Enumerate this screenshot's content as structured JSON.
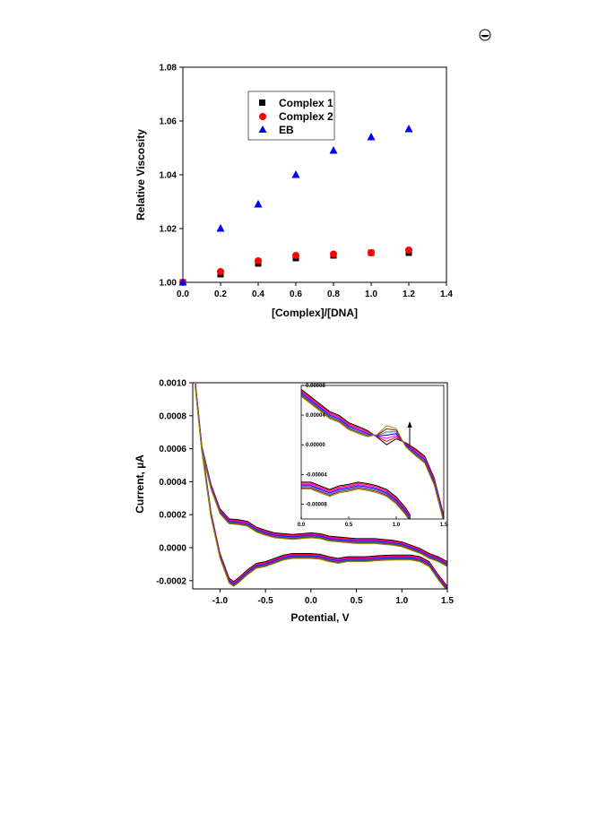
{
  "page": {
    "corner_icon": "copyright-like-circle-icon"
  },
  "chart_data": [
    {
      "type": "scatter",
      "xlabel": "[Complex]/[DNA]",
      "ylabel": "Relative Viscosity",
      "xlim": [
        0.0,
        1.4
      ],
      "ylim": [
        1.0,
        1.08
      ],
      "xticks": [
        "0.0",
        "0.2",
        "0.4",
        "0.6",
        "0.8",
        "1.0",
        "1.2",
        "1.4"
      ],
      "yticks": [
        "1.00",
        "1.02",
        "1.04",
        "1.06",
        "1.08"
      ],
      "legend_position": "top-center",
      "x": [
        0.0,
        0.2,
        0.4,
        0.6,
        0.8,
        1.0,
        1.2
      ],
      "series": [
        {
          "name": "Complex 1",
          "marker": "square",
          "color": "#000000",
          "values": [
            1.0,
            1.003,
            1.007,
            1.009,
            1.01,
            1.011,
            1.011
          ]
        },
        {
          "name": "Complex 2",
          "marker": "circle",
          "color": "#ff0000",
          "values": [
            1.0,
            1.004,
            1.008,
            1.01,
            1.0105,
            1.011,
            1.012
          ]
        },
        {
          "name": "EB",
          "marker": "triangle",
          "color": "#0000ff",
          "values": [
            1.0,
            1.02,
            1.029,
            1.04,
            1.049,
            1.054,
            1.057
          ]
        }
      ]
    },
    {
      "type": "line",
      "xlabel": "Potential, V",
      "ylabel": "Current, µA",
      "xlim": [
        -1.3,
        1.5
      ],
      "ylim": [
        -0.00025,
        0.001
      ],
      "xticks": [
        "-1.0",
        "-0.5",
        "0.0",
        "0.5",
        "1.0",
        "1.5"
      ],
      "xtick_values": [
        -1.0,
        -0.5,
        0.0,
        0.5,
        1.0,
        1.5
      ],
      "yticks": [
        "-0.0002",
        "0.0000",
        "0.0002",
        "0.0004",
        "0.0006",
        "0.0008",
        "0.0010"
      ],
      "ytick_values": [
        -0.0002,
        0.0,
        0.0002,
        0.0004,
        0.0006,
        0.0008,
        0.001
      ],
      "series_colors": [
        "#000000",
        "#ff0000",
        "#ff00ff",
        "#0000ff",
        "#3b6fb8",
        "#8b1a1a",
        "#8b8b00"
      ],
      "forward_x": [
        -1.27,
        -1.2,
        -1.1,
        -1.0,
        -0.9,
        -0.8,
        -0.7,
        -0.6,
        -0.5,
        -0.4,
        -0.3,
        -0.2,
        -0.1,
        0.0,
        0.1,
        0.2,
        0.3,
        0.4,
        0.5,
        0.6,
        0.7,
        0.8,
        0.9,
        1.0,
        1.1,
        1.2,
        1.3,
        1.4,
        1.5
      ],
      "forward_y": [
        0.00098,
        0.0006,
        0.00037,
        0.00022,
        0.00016,
        0.000155,
        0.000145,
        0.00011,
        9e-05,
        7.5e-05,
        7e-05,
        6.5e-05,
        7e-05,
        7.5e-05,
        7e-05,
        5.5e-05,
        5e-05,
        4.5e-05,
        4e-05,
        4e-05,
        4e-05,
        3.5e-05,
        3e-05,
        2e-05,
        0.0,
        -2e-05,
        -5e-05,
        -7e-05,
        -0.0001
      ],
      "reverse_x": [
        1.5,
        1.4,
        1.3,
        1.2,
        1.1,
        1.0,
        0.9,
        0.8,
        0.7,
        0.6,
        0.5,
        0.4,
        0.3,
        0.2,
        0.1,
        0.0,
        -0.1,
        -0.2,
        -0.3,
        -0.4,
        -0.5,
        -0.6,
        -0.7,
        -0.8,
        -0.85,
        -0.9,
        -1.0,
        -1.1,
        -1.2,
        -1.27
      ],
      "reverse_y": [
        -0.00025,
        -0.00018,
        -0.0001,
        -7e-05,
        -6e-05,
        -6e-05,
        -6e-05,
        -6.2e-05,
        -6.5e-05,
        -7e-05,
        -7e-05,
        -7e-05,
        -8e-05,
        -7e-05,
        -5.5e-05,
        -5e-05,
        -5e-05,
        -5e-05,
        -6e-05,
        -8e-05,
        -0.0001,
        -0.00011,
        -0.00015,
        -0.0002,
        -0.00022,
        -0.0002,
        -5e-05,
        0.0002,
        0.0006,
        0.00098
      ],
      "inset": {
        "xlim": [
          0.0,
          1.5
        ],
        "ylim": [
          -0.0001,
          8e-05
        ],
        "xticks": [
          "0.0",
          "0.5",
          "1.0",
          "1.5"
        ],
        "xtick_values": [
          0.0,
          0.5,
          1.0,
          1.5
        ],
        "yticks": [
          "-0.00008",
          "-0.00004",
          "0.00000",
          "0.00004",
          "0.00008"
        ],
        "ytick_values": [
          -8e-05,
          -4e-05,
          0.0,
          4e-05,
          8e-05
        ],
        "forward_x": [
          0.0,
          0.1,
          0.2,
          0.3,
          0.4,
          0.5,
          0.6,
          0.7,
          0.8,
          0.9,
          1.0,
          1.1,
          1.2,
          1.3,
          1.4,
          1.5
        ],
        "forward_y": [
          7e-05,
          6e-05,
          5e-05,
          4e-05,
          3.5e-05,
          2.5e-05,
          2e-05,
          1.5e-05,
          1.2e-05,
          1.3e-05,
          1.5e-05,
          0.0,
          -1e-05,
          -2e-05,
          -5e-05,
          -0.0001
        ],
        "reverse_x": [
          0.0,
          0.1,
          0.2,
          0.3,
          0.4,
          0.5,
          0.6,
          0.7,
          0.8,
          0.9,
          1.0,
          1.1,
          1.15
        ],
        "reverse_y": [
          -5.5e-05,
          -5.5e-05,
          -6e-05,
          -6.5e-05,
          -6e-05,
          -5.8e-05,
          -5.5e-05,
          -5.7e-05,
          -6e-05,
          -6.5e-05,
          -7.5e-05,
          -9e-05,
          -0.0001
        ],
        "has_arrow": true
      }
    }
  ]
}
